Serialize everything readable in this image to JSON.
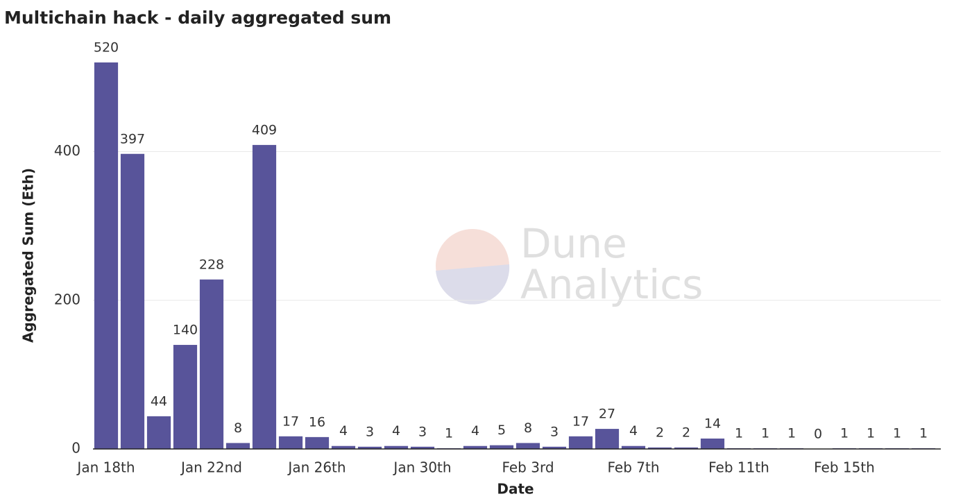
{
  "chart_data": {
    "type": "bar",
    "title": "Multichain hack - daily aggregated sum",
    "watermark": [
      "Dune",
      "Analytics"
    ],
    "x_label": "Date",
    "y_label": "Aggregated Sum (Eth)",
    "categories": [
      "Jan 18th",
      null,
      null,
      null,
      "Jan 22nd",
      null,
      null,
      null,
      "Jan 26th",
      null,
      null,
      null,
      "Jan 30th",
      null,
      null,
      null,
      "Feb 3rd",
      null,
      null,
      null,
      "Feb 7th",
      null,
      null,
      null,
      "Feb 11th",
      null,
      null,
      null,
      "Feb 15th",
      null,
      null,
      null
    ],
    "values": [
      520,
      397,
      44,
      140,
      228,
      8,
      409,
      17,
      16,
      4,
      3,
      4,
      3,
      1,
      4,
      5,
      8,
      3,
      17,
      27,
      4,
      2,
      2,
      14,
      1,
      1,
      1,
      0,
      1,
      1,
      1,
      1
    ],
    "color": "#58549a",
    "ylim": [
      0,
      520
    ],
    "yticks": [
      0,
      200,
      400
    ],
    "grid": true
  }
}
